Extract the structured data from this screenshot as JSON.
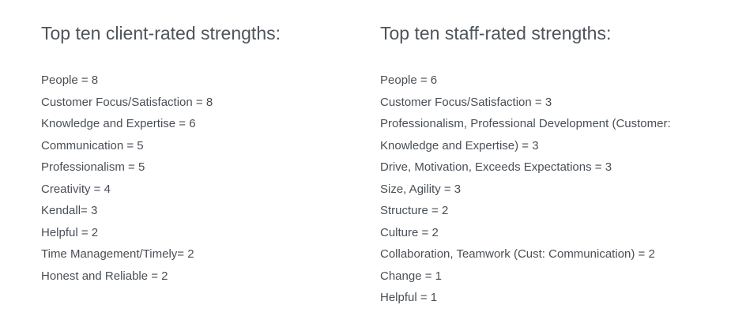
{
  "client": {
    "heading": "Top ten client-rated strengths:",
    "items": [
      "People = 8",
      "Customer Focus/Satisfaction = 8",
      "Knowledge and Expertise = 6",
      "Communication = 5",
      "Professionalism = 5",
      "Creativity = 4",
      "Kendall= 3",
      "Helpful = 2",
      "Time Management/Timely= 2",
      "Honest and Reliable = 2"
    ]
  },
  "staff": {
    "heading": "Top ten staff-rated strengths:",
    "items": [
      "People = 6",
      "Customer Focus/Satisfaction = 3",
      "Professionalism, Professional Development (Customer:",
      "Knowledge and Expertise) = 3",
      "Drive, Motivation, Exceeds Expectations = 3",
      "Size, Agility = 3",
      "Structure = 2",
      "Culture = 2",
      "Collaboration, Teamwork (Cust: Communication) = 2",
      "Change = 1",
      "Helpful = 1"
    ]
  }
}
